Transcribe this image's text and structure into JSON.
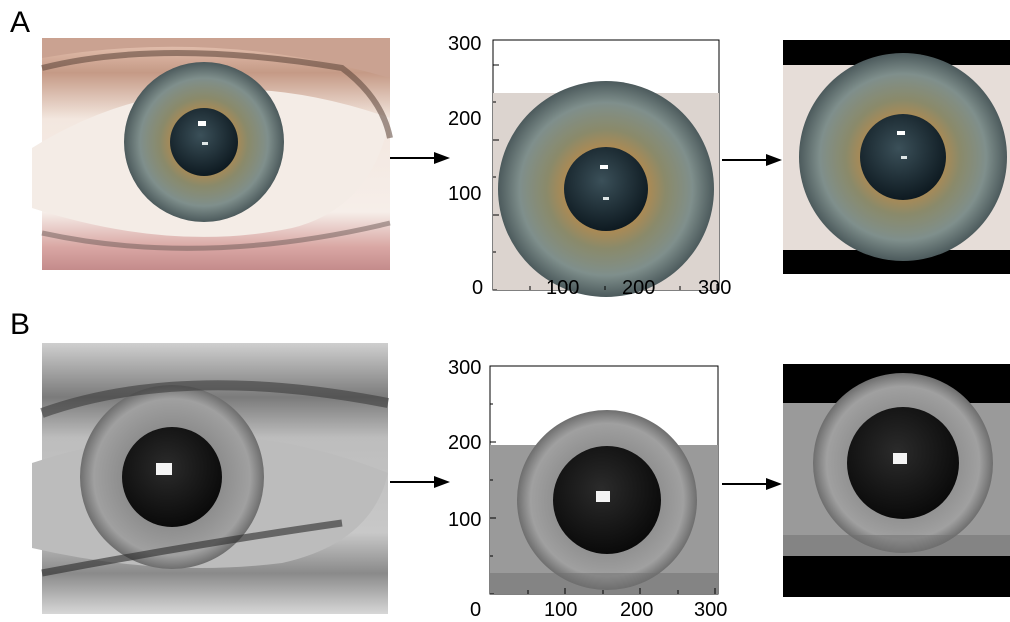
{
  "panels": [
    {
      "label": "A",
      "image_type": "color",
      "crop_plot": {
        "x_ticks": [
          "0",
          "100",
          "200",
          "300"
        ],
        "y_ticks": [
          "100",
          "200",
          "300"
        ]
      }
    },
    {
      "label": "B",
      "image_type": "grayscale",
      "crop_plot": {
        "x_ticks": [
          "0",
          "100",
          "200",
          "300"
        ],
        "y_ticks": [
          "100",
          "200",
          "300"
        ]
      }
    }
  ],
  "colors": {
    "sclera_color": "#f1e4dc",
    "iris_color": "#7f8b7e",
    "iris_ring": "#b38a4f",
    "pupil_color": "#15232c",
    "black_bar": "#000000",
    "axis": "#000000"
  }
}
